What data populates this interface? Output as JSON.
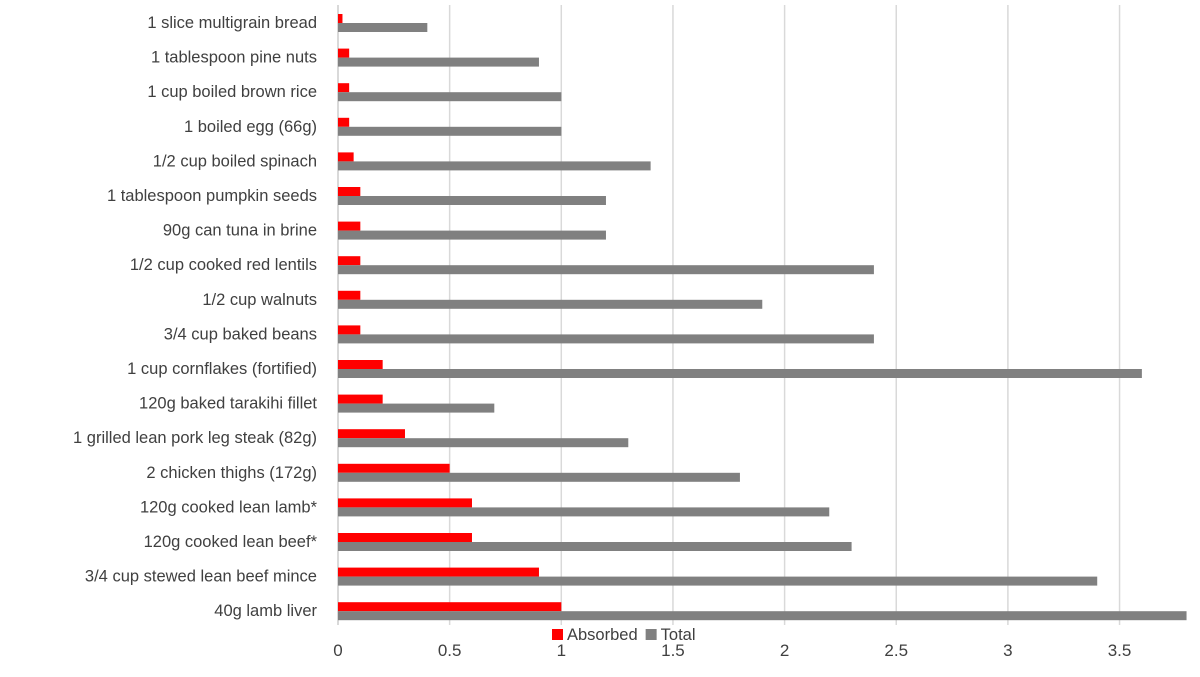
{
  "chart_data": {
    "type": "bar",
    "orientation": "horizontal",
    "categories": [
      "1 slice multigrain bread",
      "1 tablespoon pine nuts",
      "1 cup boiled brown rice",
      "1 boiled egg (66g)",
      "1/2 cup boiled spinach",
      "1 tablespoon pumpkin seeds",
      "90g can tuna in brine",
      "1/2 cup cooked red lentils",
      "1/2 cup walnuts",
      "3/4 cup baked beans",
      "1 cup cornflakes (fortified)",
      "120g baked tarakihi fillet",
      "1 grilled lean pork leg steak (82g)",
      "2 chicken thighs (172g)",
      "120g cooked lean lamb*",
      "120g cooked lean beef*",
      "3/4 cup stewed lean beef mince",
      "40g lamb liver"
    ],
    "series": [
      {
        "name": "Absorbed",
        "color": "#ff0000",
        "values": [
          0.02,
          0.05,
          0.05,
          0.05,
          0.07,
          0.1,
          0.1,
          0.1,
          0.1,
          0.1,
          0.2,
          0.2,
          0.3,
          0.5,
          0.6,
          0.6,
          0.9,
          1.0
        ]
      },
      {
        "name": "Total",
        "color": "#808080",
        "values": [
          0.4,
          0.9,
          1.0,
          1.0,
          1.4,
          1.2,
          1.2,
          2.4,
          1.9,
          2.4,
          3.6,
          0.7,
          1.3,
          1.8,
          2.2,
          2.3,
          3.4,
          3.8
        ]
      }
    ],
    "xlim": [
      0,
      3.8
    ],
    "xticks": [
      "0",
      "0.5",
      "1",
      "1.5",
      "2",
      "2.5",
      "3",
      "3.5"
    ],
    "grid": true,
    "legend": "bottom",
    "title": "",
    "xlabel": "",
    "ylabel": ""
  }
}
